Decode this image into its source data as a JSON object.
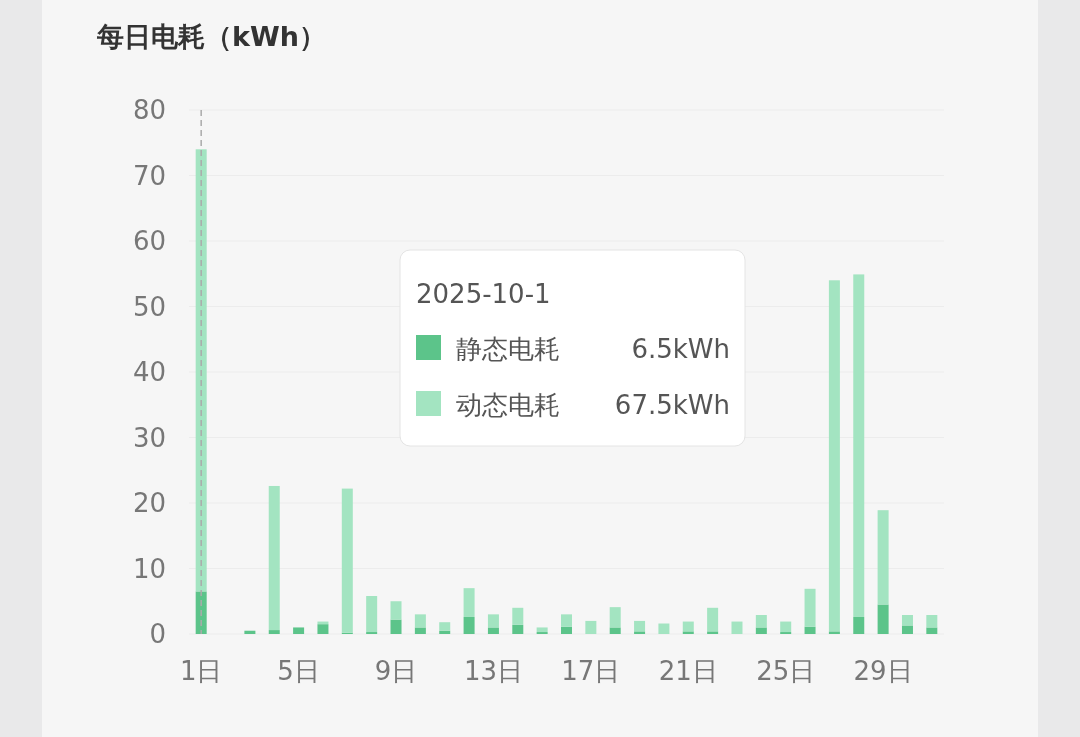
{
  "chart_data": {
    "type": "bar",
    "title": "每日电耗（kWh）",
    "stacked": true,
    "categories": [
      "1日",
      null,
      null,
      null,
      "5日",
      null,
      null,
      null,
      "9日",
      null,
      null,
      null,
      "13日",
      null,
      null,
      null,
      "17日",
      null,
      null,
      null,
      "21日",
      null,
      null,
      null,
      "25日",
      null,
      null,
      null,
      "29日",
      null,
      null
    ],
    "series": [
      {
        "name": "静态电耗",
        "color": "#5cc48a",
        "values": [
          6.5,
          0,
          0.5,
          0.6,
          1.0,
          1.5,
          0.2,
          0.3,
          2.2,
          1.0,
          0.5,
          2.6,
          1.0,
          1.4,
          0.3,
          1.1,
          0,
          1.0,
          0.4,
          0,
          0.4,
          0.4,
          0,
          1.0,
          0.3,
          1.1,
          0.4,
          2.6,
          4.5,
          1.3,
          1.0
        ]
      },
      {
        "name": "动态电耗",
        "color": "#a3e4c1",
        "values": [
          67.5,
          0,
          0,
          22,
          0,
          0.4,
          22,
          5.5,
          2.8,
          2.0,
          1.3,
          4.4,
          2.0,
          2.6,
          0.7,
          1.9,
          2.0,
          3.1,
          1.6,
          1.6,
          1.5,
          3.6,
          1.9,
          1.9,
          1.6,
          5.8,
          53.6,
          52.3,
          14.4,
          1.6,
          1.9
        ]
      }
    ],
    "ylim": [
      0,
      80
    ],
    "yticks": [
      0,
      10,
      20,
      30,
      40,
      50,
      60,
      70,
      80
    ],
    "grid": "y",
    "ref_lines": [
      {
        "axis": "x",
        "value": "1日",
        "line_style": "dashed",
        "color": "#aaaaaa"
      }
    ],
    "legend": "center",
    "legend_title": "2025-10-1",
    "annotations": [
      "6.5kWh",
      "67.5kWh"
    ]
  }
}
